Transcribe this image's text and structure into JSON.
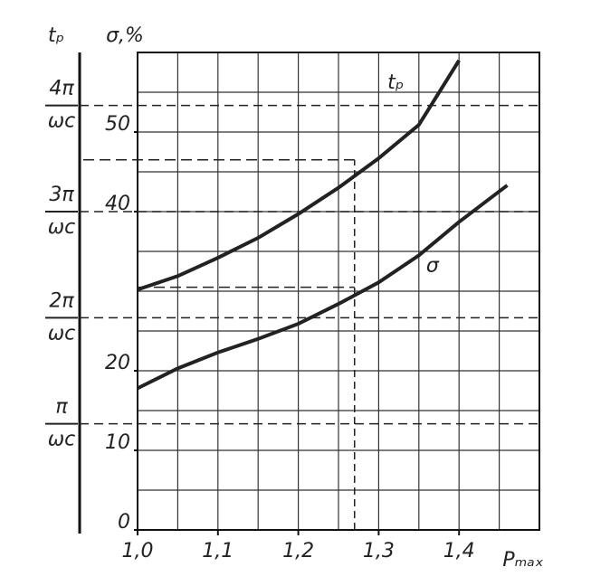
{
  "chart_data": {
    "type": "line",
    "y_label": "σ,%",
    "y2_label": "tₚ",
    "x_label": "Pₘₐₓ",
    "xlim": [
      1.0,
      1.5
    ],
    "xticks": [
      {
        "value": 1.0,
        "label": "1,0"
      },
      {
        "value": 1.1,
        "label": "1,1"
      },
      {
        "value": 1.2,
        "label": "1,2"
      },
      {
        "value": 1.3,
        "label": "1,3"
      },
      {
        "value": 1.4,
        "label": "1,4"
      }
    ],
    "ylim": [
      0,
      60
    ],
    "yticks": [
      0,
      10,
      20,
      40,
      50
    ],
    "y2lim": [
      0,
      4.5
    ],
    "y2ticks": [
      {
        "value": 1,
        "label": "π"
      },
      {
        "value": 2,
        "label": "2π"
      },
      {
        "value": 3,
        "label": "3π"
      },
      {
        "value": 4,
        "label": "4π"
      }
    ],
    "y2_denominator": "ωc",
    "grid": true,
    "series": [
      {
        "name": "tₚ",
        "color": "#222222",
        "x": [
          1.0,
          1.05,
          1.1,
          1.15,
          1.2,
          1.25,
          1.3,
          1.35,
          1.4
        ],
        "values": [
          30.2,
          31.9,
          34.2,
          36.7,
          39.7,
          43.0,
          46.7,
          50.9,
          59.0
        ]
      },
      {
        "name": "σ",
        "color": "#222222",
        "x": [
          1.0,
          1.05,
          1.1,
          1.15,
          1.2,
          1.25,
          1.3,
          1.35,
          1.4,
          1.46
        ],
        "values": [
          17.8,
          20.3,
          22.3,
          24.0,
          25.9,
          28.4,
          31.1,
          34.5,
          38.7,
          43.3
        ]
      }
    ],
    "guides": {
      "x": 1.27,
      "tp_level": 46.5,
      "sigma_level": 30.5
    }
  }
}
